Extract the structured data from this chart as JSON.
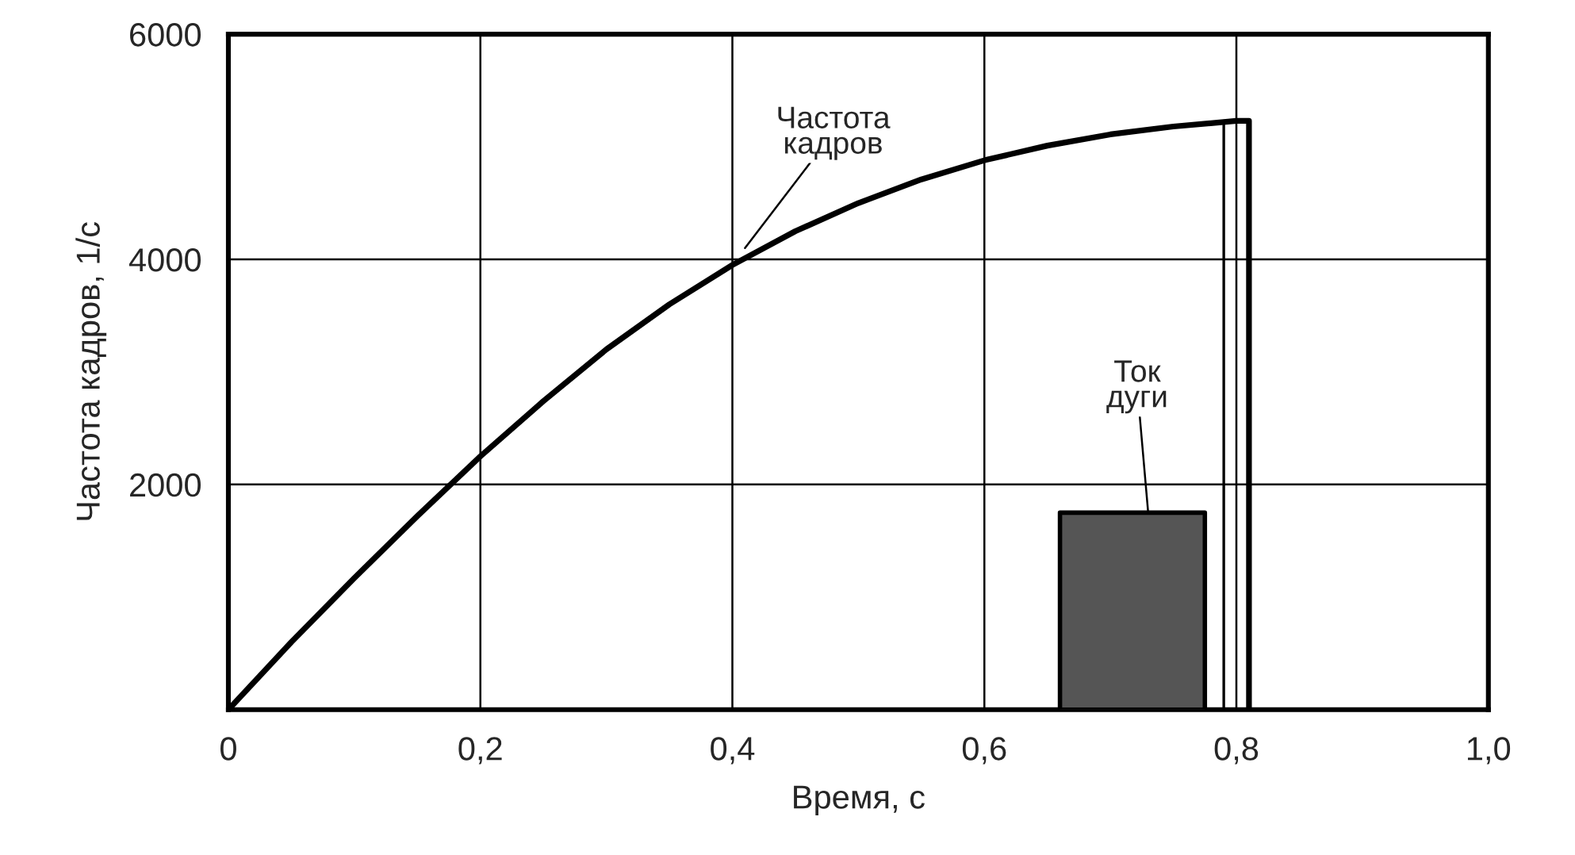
{
  "chart_data": {
    "type": "line",
    "xlabel": "Время, с",
    "ylabel": "Частота кадров, 1/с",
    "xlim": [
      0,
      1.0
    ],
    "ylim": [
      0,
      6000
    ],
    "xticks": [
      0,
      {
        "value": 0.2,
        "label": "0,2"
      },
      {
        "value": 0.4,
        "label": "0,4"
      },
      {
        "value": 0.6,
        "label": "0,6"
      },
      {
        "value": 0.8,
        "label": "0,8"
      },
      {
        "value": 1.0,
        "label": "1,0"
      }
    ],
    "yticks": [
      {
        "value": 0,
        "label": null
      },
      2000,
      4000,
      6000
    ],
    "grid": true,
    "series": [
      {
        "color": "#000000",
        "x": [
          0,
          0.05,
          0.1,
          0.15,
          0.2,
          0.25,
          0.3,
          0.35,
          0.4,
          0.45,
          0.5,
          0.55,
          0.6,
          0.65,
          0.7,
          0.75,
          0.8,
          0.81,
          0.81
        ],
        "values": [
          0,
          600,
          1170,
          1720,
          2250,
          2740,
          3200,
          3600,
          3950,
          4250,
          4500,
          4710,
          4880,
          5010,
          5110,
          5180,
          5230,
          5230,
          0
        ]
      },
      {
        "type": "line",
        "color": "#000000",
        "x": [
          0.79,
          0.79
        ],
        "values": [
          0,
          5230
        ]
      },
      {
        "type": "area",
        "color": "#555555",
        "x": [
          0.66,
          0.66,
          0.775,
          0.775
        ],
        "values": [
          0,
          1750,
          1750,
          0
        ]
      }
    ],
    "annotations": [
      {
        "text": "Частота\nкадров",
        "x": 0.41,
        "y": 4100
      },
      {
        "text": "Ток\nдуги",
        "x": 0.73,
        "y": 1750
      }
    ]
  }
}
